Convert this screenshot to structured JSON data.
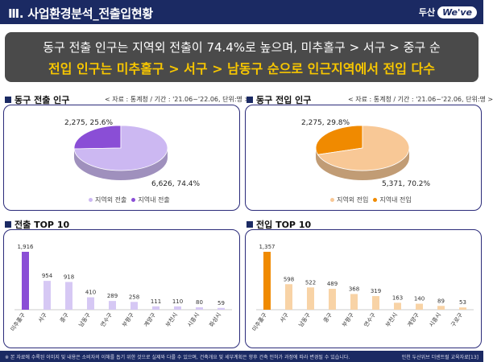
{
  "header": {
    "title": "Ⅲ. 사업환경분석_전출입현황",
    "logo_prefix": "두산",
    "logo_mark": "We've"
  },
  "banner": {
    "line1": "동구 전출 인구는 지역외 전출이 74.4%로 높으며, 미추홀구 > 서구 > 중구 순",
    "line2": "전입 인구는 미추홀구 > 서구 > 남동구 순으로 인근지역에서 전입 다수"
  },
  "sections": {
    "out_pie": {
      "title": "동구 전출 인구",
      "source": "< 자료 : 통계청 / 기간 : '21.06~'22.06, 단위:명 >"
    },
    "in_pie": {
      "title": "동구 전입 인구",
      "source": "< 자료 : 통계청 / 기간 : '21.06~'22.06, 단위:명 >"
    },
    "out_bar": {
      "title": "전출 TOP 10"
    },
    "in_bar": {
      "title": "전입 TOP 10"
    }
  },
  "chart_data": [
    {
      "type": "pie",
      "labels": [
        "지역외 전출",
        "지역내 전출"
      ],
      "values": [
        6626,
        2275
      ],
      "percents": [
        74.4,
        25.6
      ],
      "data_labels": [
        "6,626, 74.4%",
        "2,275, 25.6%"
      ],
      "colors": [
        "#ccb8f2",
        "#8a4ed6"
      ],
      "legend": "bottom"
    },
    {
      "type": "pie",
      "labels": [
        "지역외 전입",
        "지역내 전입"
      ],
      "values": [
        5371,
        2275
      ],
      "percents": [
        70.2,
        29.8
      ],
      "data_labels": [
        "5,371, 70.2%",
        "2,275, 29.8%"
      ],
      "colors": [
        "#f8c896",
        "#f08a00"
      ],
      "legend": "bottom"
    },
    {
      "type": "bar",
      "categories": [
        "미추홀구",
        "서구",
        "중구",
        "남동구",
        "연수구",
        "부평구",
        "계양구",
        "부천시",
        "시흥시",
        "화성시"
      ],
      "values": [
        1916,
        954,
        918,
        410,
        289,
        258,
        111,
        110,
        80,
        59
      ],
      "data_labels": [
        "1,916",
        "954",
        "918",
        "410",
        "289",
        "258",
        "111",
        "110",
        "80",
        "59"
      ],
      "highlight_color": "#8a4ed6",
      "color": "#d6c8f4"
    },
    {
      "type": "bar",
      "categories": [
        "미추홀구",
        "서구",
        "남동구",
        "중구",
        "부평구",
        "연수구",
        "부천시",
        "계양구",
        "시흥시",
        "구로구"
      ],
      "values": [
        1357,
        598,
        522,
        489,
        368,
        319,
        163,
        140,
        89,
        53
      ],
      "data_labels": [
        "1,357",
        "598",
        "522",
        "489",
        "368",
        "319",
        "163",
        "140",
        "89",
        "53"
      ],
      "highlight_color": "#f08a00",
      "color": "#f8d3a6"
    }
  ],
  "footer": {
    "note": "※ 본 자료에 수록된 이미지 및 내용은 소비자의 이해를 돕기 위한 것으로 실제와 다를 수 있으며, 건축개요 및 세부계획은 향후 건축 인허가 과정에 따라 변경될 수 있습니다.",
    "page": "인천 두산위브 더센트럴 교육자료[13]"
  }
}
